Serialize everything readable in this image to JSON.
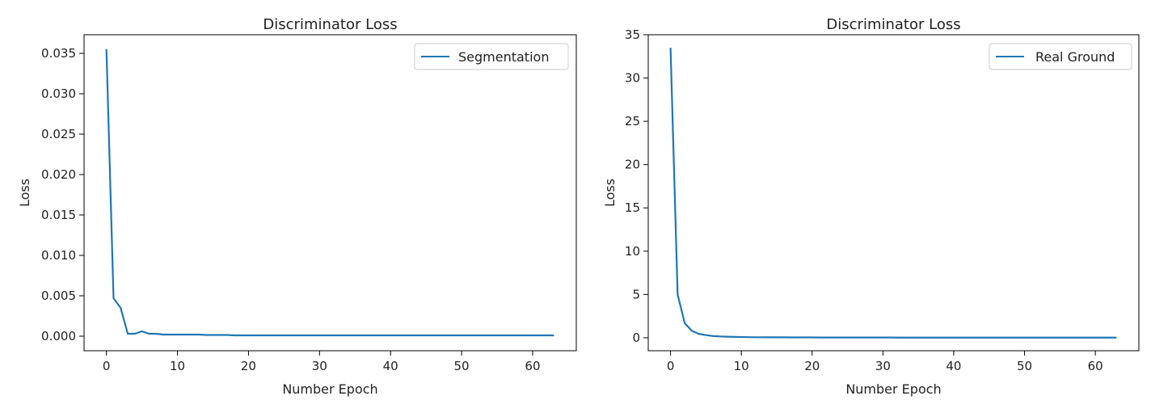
{
  "chart_data": [
    {
      "type": "line",
      "title": "Discriminator Loss",
      "xlabel": "Number Epoch",
      "ylabel": "Loss",
      "xlim": [
        -3.15,
        66.15
      ],
      "ylim": [
        -0.0018,
        0.0373
      ],
      "xticks": [
        0,
        10,
        20,
        30,
        40,
        50,
        60
      ],
      "yticks": [
        0.0,
        0.005,
        0.01,
        0.015,
        0.02,
        0.025,
        0.03,
        0.035
      ],
      "ytick_labels": [
        "0.000",
        "0.005",
        "0.010",
        "0.015",
        "0.020",
        "0.025",
        "0.030",
        "0.035"
      ],
      "grid": false,
      "legend_position": "top-right",
      "color": "#1f77b4",
      "series": [
        {
          "name": "Segmentation",
          "x": [
            0,
            1,
            2,
            3,
            4,
            5,
            6,
            7,
            8,
            9,
            10,
            11,
            12,
            13,
            14,
            15,
            16,
            17,
            18,
            19,
            20,
            21,
            22,
            23,
            24,
            25,
            26,
            27,
            28,
            29,
            30,
            31,
            32,
            33,
            34,
            35,
            36,
            37,
            38,
            39,
            40,
            41,
            42,
            43,
            44,
            45,
            46,
            47,
            48,
            49,
            50,
            51,
            52,
            53,
            54,
            55,
            56,
            57,
            58,
            59,
            60,
            61,
            62,
            63
          ],
          "values": [
            0.0355,
            0.0047,
            0.0035,
            0.0003,
            0.0003,
            0.0006,
            0.0003,
            0.0003,
            0.0002,
            0.0002,
            0.0002,
            0.0002,
            0.0002,
            0.0002,
            0.00015,
            0.00015,
            0.00015,
            0.00015,
            0.0001,
            0.0001,
            0.0001,
            0.0001,
            0.0001,
            0.0001,
            0.0001,
            0.0001,
            0.0001,
            0.0001,
            0.0001,
            0.0001,
            0.0001,
            0.0001,
            0.0001,
            0.0001,
            0.0001,
            0.0001,
            0.0001,
            0.0001,
            0.0001,
            0.0001,
            0.0001,
            0.0001,
            0.0001,
            0.0001,
            0.0001,
            0.0001,
            0.0001,
            0.0001,
            0.0001,
            0.0001,
            0.0001,
            0.0001,
            0.0001,
            0.0001,
            0.0001,
            0.0001,
            0.0001,
            0.0001,
            0.0001,
            0.0001,
            0.0001,
            0.0001,
            0.0001,
            0.0001
          ]
        }
      ]
    },
    {
      "type": "line",
      "title": "Discriminator Loss",
      "xlabel": "Number Epoch",
      "ylabel": "Loss",
      "xlim": [
        -3.15,
        66.15
      ],
      "ylim": [
        -1.5,
        35
      ],
      "xticks": [
        0,
        10,
        20,
        30,
        40,
        50,
        60
      ],
      "yticks": [
        0,
        5,
        10,
        15,
        20,
        25,
        30,
        35
      ],
      "ytick_labels": [
        "0",
        "5",
        "10",
        "15",
        "20",
        "25",
        "30",
        "35"
      ],
      "grid": false,
      "legend_position": "top-right",
      "color": "#1f77b4",
      "series": [
        {
          "name": "Real Ground",
          "x": [
            0,
            1,
            2,
            3,
            4,
            5,
            6,
            7,
            8,
            9,
            10,
            11,
            12,
            13,
            14,
            15,
            16,
            17,
            18,
            19,
            20,
            21,
            22,
            23,
            24,
            25,
            26,
            27,
            28,
            29,
            30,
            31,
            32,
            33,
            34,
            35,
            36,
            37,
            38,
            39,
            40,
            41,
            42,
            43,
            44,
            45,
            46,
            47,
            48,
            49,
            50,
            51,
            52,
            53,
            54,
            55,
            56,
            57,
            58,
            59,
            60,
            61,
            62,
            63
          ],
          "values": [
            33.5,
            5.0,
            1.7,
            0.8,
            0.45,
            0.3,
            0.2,
            0.15,
            0.12,
            0.1,
            0.08,
            0.07,
            0.06,
            0.06,
            0.05,
            0.05,
            0.05,
            0.04,
            0.04,
            0.04,
            0.04,
            0.03,
            0.03,
            0.03,
            0.03,
            0.03,
            0.03,
            0.03,
            0.03,
            0.03,
            0.03,
            0.03,
            0.02,
            0.02,
            0.02,
            0.02,
            0.02,
            0.02,
            0.02,
            0.02,
            0.02,
            0.02,
            0.02,
            0.02,
            0.02,
            0.02,
            0.02,
            0.02,
            0.02,
            0.02,
            0.02,
            0.02,
            0.02,
            0.02,
            0.02,
            0.02,
            0.02,
            0.02,
            0.02,
            0.02,
            0.02,
            0.02,
            0.02,
            0.02
          ]
        }
      ]
    }
  ]
}
